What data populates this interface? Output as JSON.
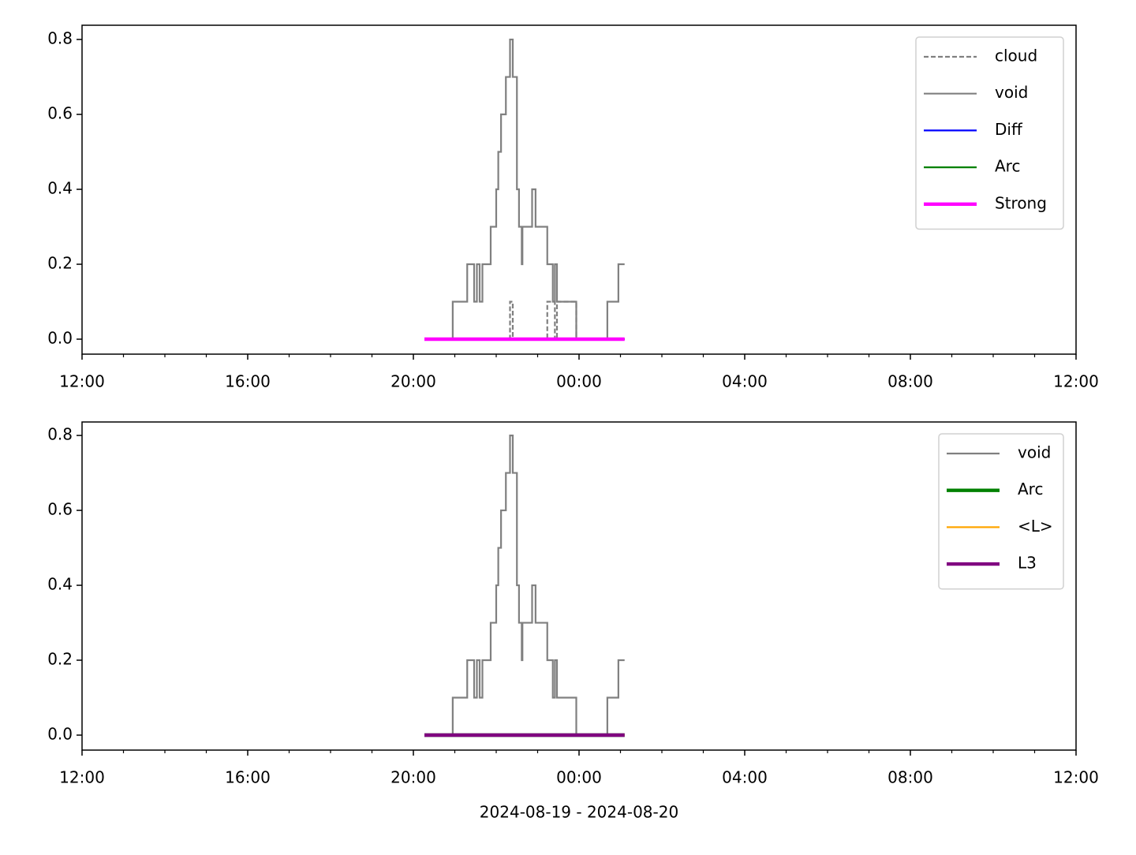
{
  "chart_data": [
    {
      "type": "line",
      "x": [
        "2024-08-19T20:16",
        "2024-08-19T20:57",
        "2024-08-19T21:18",
        "2024-08-19T21:28",
        "2024-08-19T21:32",
        "2024-08-19T21:36",
        "2024-08-19T21:40",
        "2024-08-19T21:52",
        "2024-08-19T22:00",
        "2024-08-19T22:03",
        "2024-08-19T22:07",
        "2024-08-19T22:14",
        "2024-08-19T22:20",
        "2024-08-19T22:24",
        "2024-08-19T22:30",
        "2024-08-19T22:33",
        "2024-08-19T22:37",
        "2024-08-19T22:38",
        "2024-08-19T22:52",
        "2024-08-19T22:57",
        "2024-08-19T23:14",
        "2024-08-19T23:22",
        "2024-08-19T23:25",
        "2024-08-19T23:28",
        "2024-08-19T23:56",
        "2024-08-20T00:41",
        "2024-08-20T00:57",
        "2024-08-20T01:06"
      ],
      "drawstyle": "steps-post",
      "series": [
        {
          "name": "cloud",
          "color": "#808080",
          "linewidth": 1,
          "dashed": true,
          "values": [
            0,
            0,
            0,
            0,
            0,
            0,
            0,
            0,
            0,
            0,
            0,
            0,
            0.1,
            0,
            0,
            0,
            0,
            0,
            0,
            0,
            0.1,
            0.1,
            0,
            0.1,
            0,
            0,
            0,
            0
          ]
        },
        {
          "name": "void",
          "color": "#808080",
          "linewidth": 1,
          "values": [
            0,
            0.1,
            0.2,
            0.1,
            0.2,
            0.1,
            0.2,
            0.3,
            0.4,
            0.5,
            0.6,
            0.7,
            0.8,
            0.7,
            0.4,
            0.3,
            0.2,
            0.3,
            0.4,
            0.3,
            0.2,
            0.1,
            0.2,
            0.1,
            0,
            0.1,
            0.2,
            0.2
          ]
        },
        {
          "name": "Diff",
          "color": "#0000ff",
          "linewidth": 1,
          "values": [
            0,
            0,
            0,
            0,
            0,
            0,
            0,
            0,
            0,
            0,
            0,
            0,
            0,
            0,
            0,
            0,
            0,
            0,
            0,
            0,
            0,
            0,
            0,
            0,
            0,
            0,
            0,
            0
          ]
        },
        {
          "name": "Arc",
          "color": "#008000",
          "linewidth": 1,
          "values": [
            0,
            0,
            0,
            0,
            0,
            0,
            0,
            0,
            0,
            0,
            0,
            0,
            0,
            0,
            0,
            0,
            0,
            0,
            0,
            0,
            0,
            0,
            0,
            0,
            0,
            0,
            0,
            0
          ]
        },
        {
          "name": "Strong",
          "color": "#ff00ff",
          "linewidth": 2,
          "values": [
            0,
            0,
            0,
            0,
            0,
            0,
            0,
            0,
            0,
            0,
            0,
            0,
            0,
            0,
            0,
            0,
            0,
            0,
            0,
            0,
            0,
            0,
            0,
            0,
            0,
            0,
            0,
            0
          ]
        }
      ],
      "xlim": [
        "2024-08-19T12:00",
        "2024-08-20T12:00"
      ],
      "xticks": [
        {
          "value": "2024-08-19T12:00",
          "label": "12:00"
        },
        {
          "value": "2024-08-19T16:00",
          "label": "16:00"
        },
        {
          "value": "2024-08-19T20:00",
          "label": "20:00"
        },
        {
          "value": "2024-08-20T00:00",
          "label": "00:00"
        },
        {
          "value": "2024-08-20T04:00",
          "label": "04:00"
        },
        {
          "value": "2024-08-20T08:00",
          "label": "08:00"
        },
        {
          "value": "2024-08-20T12:00",
          "label": "12:00"
        }
      ],
      "xminorticks": [
        "2024-08-19T13:00",
        "2024-08-19T14:00",
        "2024-08-19T15:00",
        "2024-08-19T17:00",
        "2024-08-19T18:00",
        "2024-08-19T19:00",
        "2024-08-19T21:00",
        "2024-08-19T22:00",
        "2024-08-19T23:00",
        "2024-08-20T01:00",
        "2024-08-20T02:00",
        "2024-08-20T03:00",
        "2024-08-20T05:00",
        "2024-08-20T06:00",
        "2024-08-20T07:00",
        "2024-08-20T09:00",
        "2024-08-20T10:00",
        "2024-08-20T11:00"
      ],
      "ylim": [
        -0.04,
        0.838
      ],
      "yticks": [
        {
          "value": 0,
          "label": "0.0"
        },
        0.2,
        0.4,
        0.6,
        0.8
      ],
      "legend": "upper right"
    },
    {
      "type": "line",
      "x": [
        "2024-08-19T20:16",
        "2024-08-19T20:57",
        "2024-08-19T21:18",
        "2024-08-19T21:28",
        "2024-08-19T21:32",
        "2024-08-19T21:36",
        "2024-08-19T21:40",
        "2024-08-19T21:52",
        "2024-08-19T22:00",
        "2024-08-19T22:03",
        "2024-08-19T22:07",
        "2024-08-19T22:14",
        "2024-08-19T22:20",
        "2024-08-19T22:24",
        "2024-08-19T22:30",
        "2024-08-19T22:33",
        "2024-08-19T22:37",
        "2024-08-19T22:38",
        "2024-08-19T22:52",
        "2024-08-19T22:57",
        "2024-08-19T23:14",
        "2024-08-19T23:22",
        "2024-08-19T23:25",
        "2024-08-19T23:28",
        "2024-08-19T23:56",
        "2024-08-20T00:41",
        "2024-08-20T00:57",
        "2024-08-20T01:06"
      ],
      "drawstyle": "steps-post",
      "series": [
        {
          "name": "void",
          "color": "#808080",
          "linewidth": 1,
          "values": [
            0,
            0.1,
            0.2,
            0.1,
            0.2,
            0.1,
            0.2,
            0.3,
            0.4,
            0.5,
            0.6,
            0.7,
            0.8,
            0.7,
            0.4,
            0.3,
            0.2,
            0.3,
            0.4,
            0.3,
            0.2,
            0.1,
            0.2,
            0.1,
            0,
            0.1,
            0.2,
            0.2
          ]
        },
        {
          "name": "Arc",
          "color": "#008000",
          "linewidth": 2,
          "values": [
            0,
            0,
            0,
            0,
            0,
            0,
            0,
            0,
            0,
            0,
            0,
            0,
            0,
            0,
            0,
            0,
            0,
            0,
            0,
            0,
            0,
            0,
            0,
            0,
            0,
            0,
            0,
            0
          ]
        },
        {
          "name": "<L>",
          "color": "#ffa500",
          "linewidth": 1,
          "values": [
            0,
            0,
            0,
            0,
            0,
            0,
            0,
            0,
            0,
            0,
            0,
            0,
            0,
            0,
            0,
            0,
            0,
            0,
            0,
            0,
            0,
            0,
            0,
            0,
            0,
            0,
            0,
            0
          ]
        },
        {
          "name": "L3",
          "color": "#800080",
          "linewidth": 2,
          "values": [
            0,
            0,
            0,
            0,
            0,
            0,
            0,
            0,
            0,
            0,
            0,
            0,
            0,
            0,
            0,
            0,
            0,
            0,
            0,
            0,
            0,
            0,
            0,
            0,
            0,
            0,
            0,
            0
          ]
        }
      ],
      "xlim": [
        "2024-08-19T12:00",
        "2024-08-20T12:00"
      ],
      "xticks": [
        {
          "value": "2024-08-19T12:00",
          "label": "12:00"
        },
        {
          "value": "2024-08-19T16:00",
          "label": "16:00"
        },
        {
          "value": "2024-08-19T20:00",
          "label": "20:00"
        },
        {
          "value": "2024-08-20T00:00",
          "label": "00:00"
        },
        {
          "value": "2024-08-20T04:00",
          "label": "04:00"
        },
        {
          "value": "2024-08-20T08:00",
          "label": "08:00"
        },
        {
          "value": "2024-08-20T12:00",
          "label": "12:00"
        }
      ],
      "xminorticks": [
        "2024-08-19T13:00",
        "2024-08-19T14:00",
        "2024-08-19T15:00",
        "2024-08-19T17:00",
        "2024-08-19T18:00",
        "2024-08-19T19:00",
        "2024-08-19T21:00",
        "2024-08-19T22:00",
        "2024-08-19T23:00",
        "2024-08-20T01:00",
        "2024-08-20T02:00",
        "2024-08-20T03:00",
        "2024-08-20T05:00",
        "2024-08-20T06:00",
        "2024-08-20T07:00",
        "2024-08-20T09:00",
        "2024-08-20T10:00",
        "2024-08-20T11:00"
      ],
      "ylim": [
        -0.04,
        0.836
      ],
      "yticks": [
        {
          "value": 0,
          "label": "0.0"
        },
        0.2,
        0.4,
        0.6,
        0.8
      ],
      "xlabel": "2024-08-19 - 2024-08-20",
      "legend": "upper right"
    }
  ]
}
